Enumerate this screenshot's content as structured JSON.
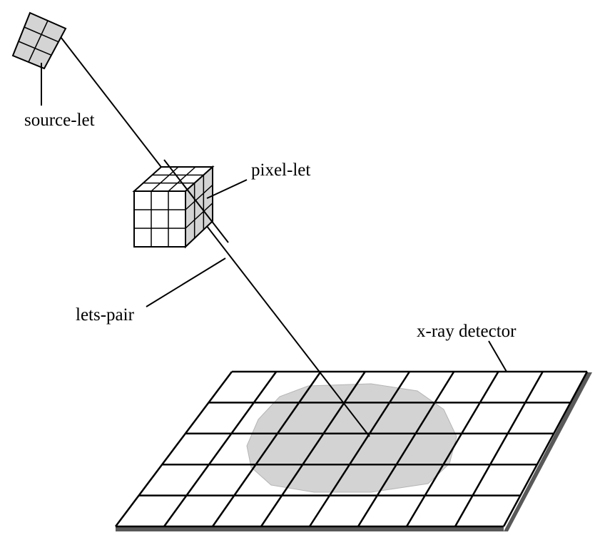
{
  "labels": {
    "source_let": "source-let",
    "pixel_let": "pixel-let",
    "lets_pair": "lets-pair",
    "detector": "x-ray detector"
  },
  "colors": {
    "line": "#000000",
    "source_fill": "#d4d4d4",
    "cube_front": "#ffffff",
    "cube_top": "#ffffff",
    "cube_side": "#d4d4d4",
    "detector_grid": "#000000",
    "detector_edge": "#595959",
    "projection_fill": "#d3d3d3"
  },
  "grid": {
    "source_let": {
      "rows": 3,
      "cols": 2
    },
    "cube": {
      "rows": 3,
      "cols": 3
    },
    "detector": {
      "rows": 5,
      "cols": 8
    }
  }
}
